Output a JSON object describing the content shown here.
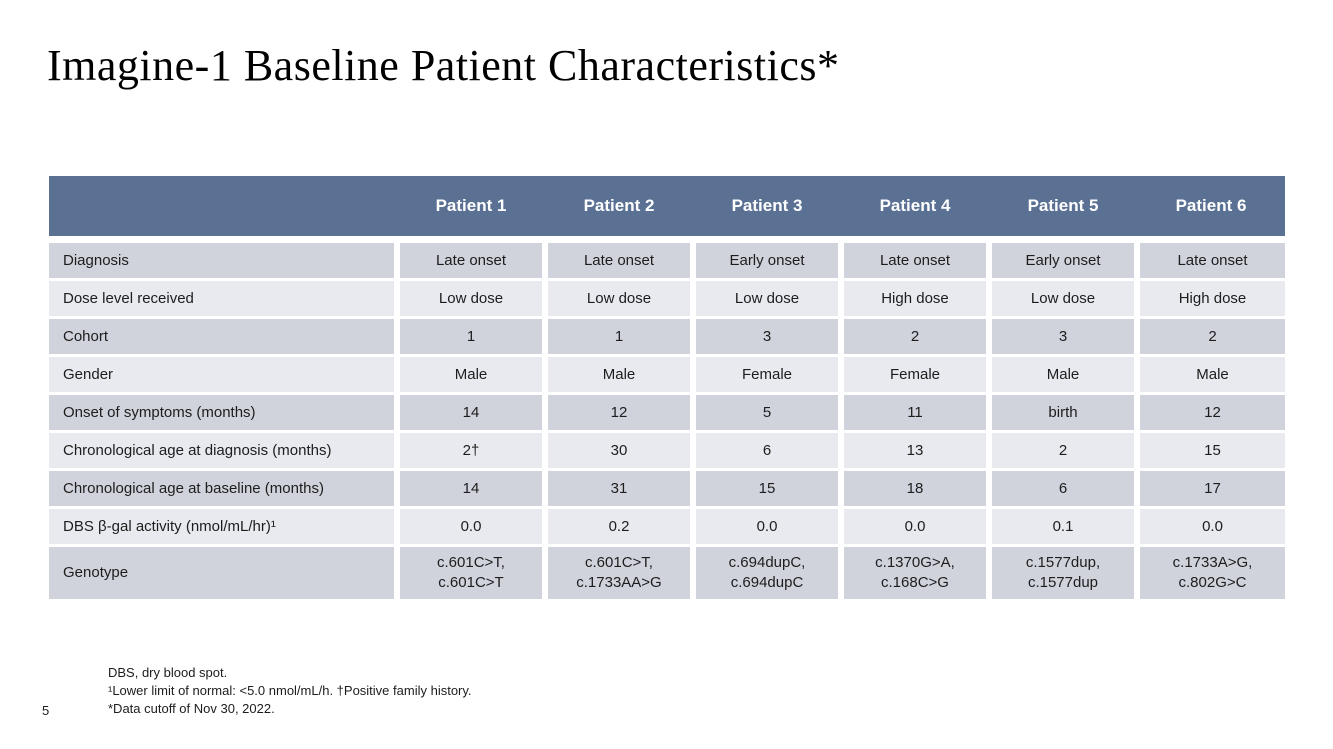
{
  "slide": {
    "title": "Imagine-1 Baseline Patient Characteristics*",
    "page_number": "5"
  },
  "table": {
    "columns": [
      "Patient 1",
      "Patient 2",
      "Patient 3",
      "Patient 4",
      "Patient 5",
      "Patient 6"
    ],
    "rows": [
      {
        "label": "Diagnosis",
        "values": [
          "Late onset",
          "Late onset",
          "Early onset",
          "Late onset",
          "Early onset",
          "Late onset"
        ]
      },
      {
        "label": "Dose level received",
        "values": [
          "Low dose",
          "Low dose",
          "Low dose",
          "High dose",
          "Low dose",
          "High dose"
        ]
      },
      {
        "label": "Cohort",
        "values": [
          "1",
          "1",
          "3",
          "2",
          "3",
          "2"
        ]
      },
      {
        "label": "Gender",
        "values": [
          "Male",
          "Male",
          "Female",
          "Female",
          "Male",
          "Male"
        ]
      },
      {
        "label": "Onset of symptoms (months)",
        "values": [
          "14",
          "12",
          "5",
          "11",
          "birth",
          "12"
        ]
      },
      {
        "label": "Chronological age at diagnosis (months)",
        "values": [
          "2†",
          "30",
          "6",
          "13",
          "2",
          "15"
        ]
      },
      {
        "label": "Chronological age at baseline (months)",
        "values": [
          "14",
          "31",
          "15",
          "18",
          "6",
          "17"
        ]
      },
      {
        "label": "DBS β-gal activity (nmol/mL/hr)¹",
        "values": [
          "0.0",
          "0.2",
          "0.0",
          "0.0",
          "0.1",
          "0.0"
        ]
      },
      {
        "label": "Genotype",
        "values": [
          "c.601C>T,\nc.601C>T",
          "c.601C>T,\nc.1733AA>G",
          "c.694dupC,\nc.694dupC",
          "c.1370G>A,\nc.168C>G",
          "c.1577dup,\nc.1577dup",
          "c.1733A>G,\nc.802G>C"
        ]
      }
    ]
  },
  "footnotes": {
    "lines": [
      "DBS, dry blood spot.",
      "¹Lower limit of normal: <5.0 nmol/mL/h. †Positive family history.",
      "*Data cutoff of Nov 30, 2022."
    ]
  },
  "colors": {
    "header_bg": "#5B7194",
    "header_text": "#FFFFFF",
    "row_dark": "#D0D3DC",
    "row_light": "#E9EAEF"
  }
}
